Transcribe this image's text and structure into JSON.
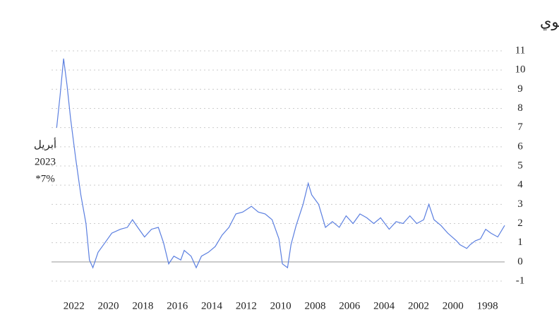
{
  "chart_data": {
    "type": "line",
    "subtitle": "التغيرات الشهرية في أسعار المستهلك، على أساس سنوي",
    "annotation": [
      "أبريل",
      "2023",
      "*7%"
    ],
    "x": [
      1997.0,
      1997.4,
      1997.8,
      1998.1,
      1998.4,
      1998.7,
      1999.0,
      1999.2,
      1999.6,
      1999.8,
      2000.3,
      2000.7,
      2001.1,
      2001.4,
      2001.7,
      2002.1,
      2002.5,
      2002.9,
      2003.3,
      2003.7,
      2004.2,
      2004.6,
      2005.0,
      2005.4,
      2005.8,
      2006.2,
      2006.6,
      2007.0,
      2007.4,
      2007.8,
      2008.2,
      2008.4,
      2008.7,
      2009.1,
      2009.4,
      2009.6,
      2009.9,
      2010.1,
      2010.5,
      2010.9,
      2011.3,
      2011.7,
      2012.2,
      2012.6,
      2013.0,
      2013.4,
      2013.8,
      2014.2,
      2014.6,
      2014.9,
      2015.2,
      2015.6,
      2015.8,
      2016.2,
      2016.5,
      2016.8,
      2017.1,
      2017.5,
      2017.9,
      2018.3,
      2018.6,
      2018.9,
      2019.3,
      2019.8,
      2020.2,
      2020.6,
      2020.9,
      2021.1,
      2021.3,
      2021.6,
      2021.9,
      2022.2,
      2022.4,
      2022.6,
      2022.8,
      2023.0
    ],
    "values": [
      1.9,
      1.3,
      1.5,
      1.7,
      1.2,
      1.1,
      0.9,
      0.7,
      0.9,
      1.1,
      1.5,
      1.9,
      2.2,
      3.0,
      2.2,
      2.0,
      2.4,
      2.0,
      2.1,
      1.7,
      2.3,
      2.0,
      2.3,
      2.5,
      2.0,
      2.4,
      1.8,
      2.1,
      1.8,
      3.0,
      3.5,
      4.1,
      3.0,
      1.9,
      0.9,
      -0.3,
      -0.1,
      1.2,
      2.2,
      2.5,
      2.6,
      2.9,
      2.6,
      2.5,
      1.8,
      1.4,
      0.8,
      0.5,
      0.3,
      -0.3,
      0.3,
      0.6,
      0.1,
      0.3,
      -0.1,
      1.0,
      1.8,
      1.7,
      1.3,
      1.8,
      2.2,
      1.8,
      1.7,
      1.5,
      1.0,
      0.5,
      -0.3,
      0.1,
      2.0,
      3.5,
      5.4,
      7.5,
      9.2,
      10.6,
      8.7,
      7.0
    ],
    "color": "#5b7fe0",
    "xlim": [
      2023.3,
      1997.0
    ],
    "xticks": [
      2022,
      2020,
      2018,
      2016,
      2014,
      2012,
      2010,
      2008,
      2006,
      2004,
      2002,
      2000,
      1998
    ],
    "ylim": [
      -1,
      11
    ],
    "yticks": [
      -1,
      0,
      1,
      2,
      3,
      4,
      5,
      6,
      7,
      8,
      9,
      10,
      11
    ],
    "grid": true
  }
}
